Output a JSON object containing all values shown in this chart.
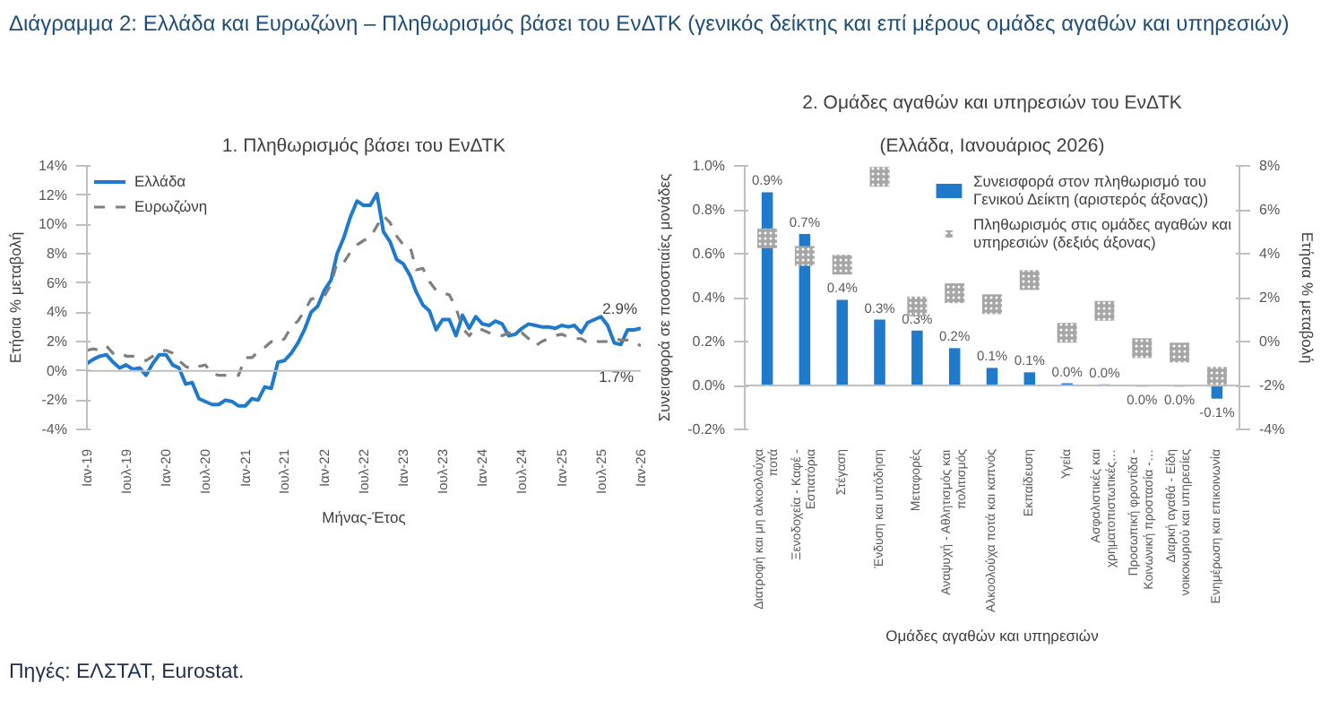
{
  "chart_data": [
    {
      "type": "other",
      "title": "Διάγραμμα 2: Ελλάδα και Ευρωζώνη – Πληθωρισμός βάσει του ΕνΔΤΚ (γενικός δείκτης και επί μέρους ομάδες αγαθών και υπηρεσιών)",
      "annotations": [
        "Πηγές: ΕΛΣΤΑΤ, Eurostat."
      ]
    },
    {
      "type": "line",
      "title": "1. Πληθωρισμός βάσει του ΕνΔΤΚ",
      "xlabel": "Μήνας-Έτος",
      "ylabel": "Ετήσια % μεταβολή",
      "legend": "top left",
      "grid": false,
      "xlim": [
        "2019-01",
        "2026-01"
      ],
      "xticks": [
        {
          "value": "2019-01",
          "label": "Ιαν-19"
        },
        {
          "value": "2019-07",
          "label": "Ιουλ-19"
        },
        {
          "value": "2020-01",
          "label": "Ιαν-20"
        },
        {
          "value": "2020-07",
          "label": "Ιουλ-20"
        },
        {
          "value": "2021-01",
          "label": "Ιαν-21"
        },
        {
          "value": "2021-07",
          "label": "Ιουλ-21"
        },
        {
          "value": "2022-01",
          "label": "Ιαν-22"
        },
        {
          "value": "2022-07",
          "label": "Ιουλ-22"
        },
        {
          "value": "2023-01",
          "label": "Ιαν-23"
        },
        {
          "value": "2023-07",
          "label": "Ιουλ-23"
        },
        {
          "value": "2024-01",
          "label": "Ιαν-24"
        },
        {
          "value": "2024-07",
          "label": "Ιουλ-24"
        },
        {
          "value": "2025-01",
          "label": "Ιαν-25"
        },
        {
          "value": "2025-07",
          "label": "Ιουλ-25"
        },
        {
          "value": "2026-01",
          "label": "Ιαν-26"
        }
      ],
      "ylim": [
        -4,
        14
      ],
      "yticks": [
        {
          "value": -4,
          "label": "-4%"
        },
        {
          "value": -2,
          "label": "-2%"
        },
        {
          "value": 0,
          "label": "0%"
        },
        {
          "value": 2,
          "label": "2%"
        },
        {
          "value": 4,
          "label": "4%"
        },
        {
          "value": 6,
          "label": "6%"
        },
        {
          "value": 8,
          "label": "8%"
        },
        {
          "value": 10,
          "label": "10%"
        },
        {
          "value": 12,
          "label": "12%"
        },
        {
          "value": 14,
          "label": "14%"
        }
      ],
      "ref_lines": [
        {
          "axis": "y",
          "value": 0,
          "color": "#bfbfbf"
        }
      ],
      "x": [
        "2019-01",
        "2019-02",
        "2019-03",
        "2019-04",
        "2019-05",
        "2019-06",
        "2019-07",
        "2019-08",
        "2019-09",
        "2019-10",
        "2019-11",
        "2019-12",
        "2020-01",
        "2020-02",
        "2020-03",
        "2020-04",
        "2020-05",
        "2020-06",
        "2020-07",
        "2020-08",
        "2020-09",
        "2020-10",
        "2020-11",
        "2020-12",
        "2021-01",
        "2021-02",
        "2021-03",
        "2021-04",
        "2021-05",
        "2021-06",
        "2021-07",
        "2021-08",
        "2021-09",
        "2021-10",
        "2021-11",
        "2021-12",
        "2022-01",
        "2022-02",
        "2022-03",
        "2022-04",
        "2022-05",
        "2022-06",
        "2022-07",
        "2022-08",
        "2022-09",
        "2022-10",
        "2022-11",
        "2022-12",
        "2023-01",
        "2023-02",
        "2023-03",
        "2023-04",
        "2023-05",
        "2023-06",
        "2023-07",
        "2023-08",
        "2023-09",
        "2023-10",
        "2023-11",
        "2023-12",
        "2024-01",
        "2024-02",
        "2024-03",
        "2024-04",
        "2024-05",
        "2024-06",
        "2024-07",
        "2024-08",
        "2024-09",
        "2024-10",
        "2024-11",
        "2024-12",
        "2025-01",
        "2025-02",
        "2025-03",
        "2025-04",
        "2025-05",
        "2025-06",
        "2025-07",
        "2025-08",
        "2025-09",
        "2025-10",
        "2025-11",
        "2025-12",
        "2026-01"
      ],
      "series": [
        {
          "name": "Ελλάδα",
          "color": "#1f7acc",
          "line_style": "solid",
          "values": [
            0.5,
            0.8,
            1.0,
            1.1,
            0.6,
            0.2,
            0.4,
            0.1,
            0.2,
            -0.3,
            0.5,
            1.1,
            1.1,
            0.4,
            0.2,
            -0.9,
            -0.8,
            -1.9,
            -2.1,
            -2.3,
            -2.3,
            -2.0,
            -2.1,
            -2.4,
            -2.4,
            -1.9,
            -2.0,
            -1.1,
            -1.2,
            0.6,
            0.7,
            1.2,
            1.9,
            2.8,
            4.0,
            4.4,
            5.5,
            6.2,
            8.0,
            9.1,
            10.5,
            11.6,
            11.3,
            11.3,
            12.1,
            9.5,
            8.8,
            7.6,
            7.3,
            6.5,
            5.4,
            4.5,
            4.1,
            2.8,
            3.5,
            3.5,
            2.4,
            3.8,
            2.9,
            3.7,
            3.2,
            3.1,
            3.4,
            3.2,
            2.4,
            2.5,
            2.9,
            3.2,
            3.1,
            3.0,
            3.0,
            2.9,
            3.1,
            3.0,
            3.1,
            2.6,
            3.3,
            3.5,
            3.7,
            3.1,
            1.9,
            1.8,
            2.8,
            2.8,
            2.9
          ]
        },
        {
          "name": "Ευρωζώνη",
          "color": "#7f7f7f",
          "line_style": "dashed",
          "values": [
            1.4,
            1.5,
            1.4,
            1.7,
            1.2,
            1.3,
            1.0,
            1.0,
            0.8,
            0.7,
            1.0,
            1.3,
            1.4,
            1.2,
            0.7,
            0.3,
            0.1,
            0.3,
            0.4,
            -0.2,
            -0.3,
            -0.3,
            -0.3,
            -0.3,
            0.9,
            0.9,
            1.3,
            1.6,
            2.0,
            1.9,
            2.2,
            3.0,
            3.4,
            4.1,
            4.9,
            5.0,
            5.1,
            5.9,
            7.4,
            7.4,
            8.1,
            8.6,
            8.9,
            9.1,
            9.9,
            10.6,
            10.1,
            9.2,
            8.6,
            8.5,
            6.9,
            7.0,
            6.1,
            5.5,
            5.3,
            5.2,
            4.3,
            2.9,
            2.4,
            2.9,
            2.8,
            2.6,
            2.4,
            2.4,
            2.6,
            2.5,
            2.6,
            2.2,
            1.7,
            2.0,
            2.2,
            2.4,
            2.5,
            2.3,
            2.2,
            2.2,
            1.9,
            2.0,
            2.0,
            2.0,
            2.2,
            2.1,
            2.1,
            2.0,
            1.7
          ]
        }
      ],
      "annotations": [
        {
          "text": "1.7%",
          "x": "2026-01",
          "y": 1.7
        },
        {
          "text": "2.9%",
          "x": "2026-01",
          "y": 2.9
        }
      ]
    },
    {
      "type": "bar",
      "title": "2. Ομάδες αγαθών και υπηρεσιών του ΕνΔΤΚ",
      "subtitle": "(Ελλάδα, Ιανουάριος 2026)",
      "xlabel": "Ομάδες αγαθών και υπηρεσιών",
      "ylabel": "Συνεισφορά σε ποσοστιαίες μονάδες",
      "y2label": "Ετήσια % μεταβολή",
      "legend": "top right",
      "grid": false,
      "categories": [
        "Διατροφή και μη αλκοολούχα ποτά",
        "Ξενοδοχεία - Καφέ - Εστιατόρια",
        "Στέγαση",
        "Ένδυση και υπόδηση",
        "Μεταφορές",
        "Αναψυχή - Αθλητισμός και πολιτισμός",
        "Αλκοολούχα ποτά και καπνός",
        "Εκπαίδευση",
        "Υγεία",
        "Ασφαλιστικές και χρηματοπιστωτικές…",
        "Προσωπική φροντίδα - Κοινωνική προστασία -…",
        "Διαρκή αγαθά - Είδη νοικοκυριού και υπηρεσίες",
        "Ενημέρωση και επικοινωνία"
      ],
      "ylim": [
        -0.2,
        1.0
      ],
      "yticks": [
        {
          "value": -0.2,
          "label": "-0.2%"
        },
        {
          "value": 0,
          "label": "0.0%"
        },
        {
          "value": 0.2,
          "label": "0.2%"
        },
        {
          "value": 0.4,
          "label": "0.4%"
        },
        {
          "value": 0.6,
          "label": "0.6%"
        },
        {
          "value": 0.8,
          "label": "0.8%"
        },
        {
          "value": 1.0,
          "label": "1.0%"
        }
      ],
      "y2lim": [
        -4,
        8
      ],
      "y2ticks": [
        {
          "value": -4,
          "label": "-4%"
        },
        {
          "value": -2,
          "label": "-2%"
        },
        {
          "value": 0,
          "label": "0%"
        },
        {
          "value": 2,
          "label": "2%"
        },
        {
          "value": 4,
          "label": "4%"
        },
        {
          "value": 6,
          "label": "6%"
        },
        {
          "value": 8,
          "label": "8%"
        }
      ],
      "ref_lines": [
        {
          "axis": "y",
          "value": 0,
          "color": "#bfbfbf"
        }
      ],
      "series": [
        {
          "name": "Συνεισφορά στον πληθωρισμό του Γενικού Δείκτη (αριστερός άξονας))",
          "type": "bar",
          "color": "#1f7acc",
          "values": [
            0.88,
            0.69,
            0.39,
            0.3,
            0.25,
            0.17,
            0.08,
            0.06,
            0.01,
            0.005,
            -0.005,
            -0.005,
            -0.06
          ],
          "value_labels": [
            "0.9%",
            "0.7%",
            "0.4%",
            "0.3%",
            "0.3%",
            "0.2%",
            "0.1%",
            "0.1%",
            "0.0%",
            "0.0%",
            "0.0%",
            "0.0%",
            "-0.1%"
          ]
        },
        {
          "name": "Πληθωρισμός στις ομάδες αγαθών και υπηρεσιών (δεξιός άξονας)",
          "type": "scatter",
          "axis": "y2",
          "marker": "square",
          "color": "#a6a6a6",
          "values": [
            4.7,
            3.9,
            3.5,
            7.5,
            1.6,
            2.2,
            1.7,
            2.8,
            0.4,
            1.4,
            -0.3,
            -0.5,
            -1.6
          ]
        }
      ]
    }
  ]
}
